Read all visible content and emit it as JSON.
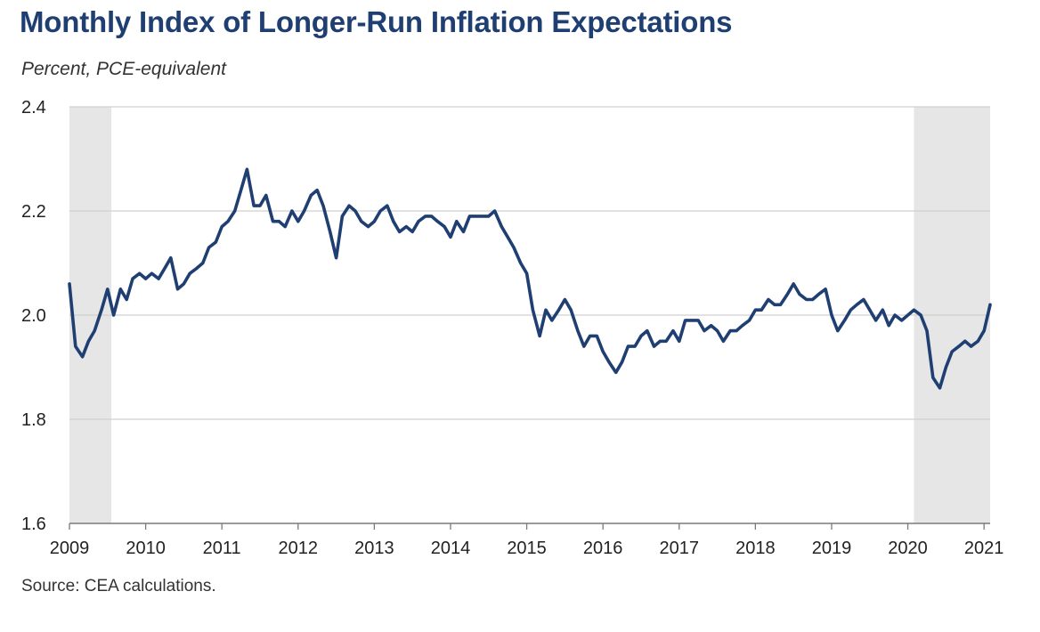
{
  "title": "Monthly Index of Longer-Run Inflation Expectations",
  "subtitle": "Percent, PCE-equivalent",
  "source": "Source: CEA calculations.",
  "chart_data": {
    "type": "line",
    "title": "Monthly Index of Longer-Run Inflation Expectations",
    "ylabel": "Percent, PCE-equivalent",
    "xlabel": "",
    "ylim": [
      1.6,
      2.4
    ],
    "xlim": [
      2009.0,
      2021.08
    ],
    "grid": true,
    "legend": "none",
    "line_color": "#1f3f73",
    "shade_color": "#e6e6e6",
    "x_ticks": [
      "2009",
      "2010",
      "2011",
      "2012",
      "2013",
      "2014",
      "2015",
      "2016",
      "2017",
      "2018",
      "2019",
      "2020",
      "2021"
    ],
    "y_ticks": [
      "1.6",
      "1.8",
      "2.0",
      "2.2",
      "2.4"
    ],
    "recession_shading": [
      [
        2009.0,
        2009.55
      ],
      [
        2020.08,
        2021.08
      ]
    ],
    "series": [
      {
        "values": [
          [
            2009.0,
            2.06
          ],
          [
            2009.08,
            1.94
          ],
          [
            2009.17,
            1.92
          ],
          [
            2009.25,
            1.95
          ],
          [
            2009.33,
            1.97
          ],
          [
            2009.42,
            2.01
          ],
          [
            2009.5,
            2.05
          ],
          [
            2009.58,
            2.0
          ],
          [
            2009.67,
            2.05
          ],
          [
            2009.75,
            2.03
          ],
          [
            2009.83,
            2.07
          ],
          [
            2009.92,
            2.08
          ],
          [
            2010.0,
            2.07
          ],
          [
            2010.08,
            2.08
          ],
          [
            2010.17,
            2.07
          ],
          [
            2010.25,
            2.09
          ],
          [
            2010.33,
            2.11
          ],
          [
            2010.42,
            2.05
          ],
          [
            2010.5,
            2.06
          ],
          [
            2010.58,
            2.08
          ],
          [
            2010.67,
            2.09
          ],
          [
            2010.75,
            2.1
          ],
          [
            2010.83,
            2.13
          ],
          [
            2010.92,
            2.14
          ],
          [
            2011.0,
            2.17
          ],
          [
            2011.08,
            2.18
          ],
          [
            2011.17,
            2.2
          ],
          [
            2011.25,
            2.24
          ],
          [
            2011.33,
            2.28
          ],
          [
            2011.42,
            2.21
          ],
          [
            2011.5,
            2.21
          ],
          [
            2011.58,
            2.23
          ],
          [
            2011.67,
            2.18
          ],
          [
            2011.75,
            2.18
          ],
          [
            2011.83,
            2.17
          ],
          [
            2011.92,
            2.2
          ],
          [
            2012.0,
            2.18
          ],
          [
            2012.08,
            2.2
          ],
          [
            2012.17,
            2.23
          ],
          [
            2012.25,
            2.24
          ],
          [
            2012.33,
            2.21
          ],
          [
            2012.42,
            2.16
          ],
          [
            2012.5,
            2.11
          ],
          [
            2012.58,
            2.19
          ],
          [
            2012.67,
            2.21
          ],
          [
            2012.75,
            2.2
          ],
          [
            2012.83,
            2.18
          ],
          [
            2012.92,
            2.17
          ],
          [
            2013.0,
            2.18
          ],
          [
            2013.08,
            2.2
          ],
          [
            2013.17,
            2.21
          ],
          [
            2013.25,
            2.18
          ],
          [
            2013.33,
            2.16
          ],
          [
            2013.42,
            2.17
          ],
          [
            2013.5,
            2.16
          ],
          [
            2013.58,
            2.18
          ],
          [
            2013.67,
            2.19
          ],
          [
            2013.75,
            2.19
          ],
          [
            2013.83,
            2.18
          ],
          [
            2013.92,
            2.17
          ],
          [
            2014.0,
            2.15
          ],
          [
            2014.08,
            2.18
          ],
          [
            2014.17,
            2.16
          ],
          [
            2014.25,
            2.19
          ],
          [
            2014.33,
            2.19
          ],
          [
            2014.42,
            2.19
          ],
          [
            2014.5,
            2.19
          ],
          [
            2014.58,
            2.2
          ],
          [
            2014.67,
            2.17
          ],
          [
            2014.75,
            2.15
          ],
          [
            2014.83,
            2.13
          ],
          [
            2014.92,
            2.1
          ],
          [
            2015.0,
            2.08
          ],
          [
            2015.08,
            2.01
          ],
          [
            2015.17,
            1.96
          ],
          [
            2015.25,
            2.01
          ],
          [
            2015.33,
            1.99
          ],
          [
            2015.42,
            2.01
          ],
          [
            2015.5,
            2.03
          ],
          [
            2015.58,
            2.01
          ],
          [
            2015.67,
            1.97
          ],
          [
            2015.75,
            1.94
          ],
          [
            2015.83,
            1.96
          ],
          [
            2015.92,
            1.96
          ],
          [
            2016.0,
            1.93
          ],
          [
            2016.08,
            1.91
          ],
          [
            2016.17,
            1.89
          ],
          [
            2016.25,
            1.91
          ],
          [
            2016.33,
            1.94
          ],
          [
            2016.42,
            1.94
          ],
          [
            2016.5,
            1.96
          ],
          [
            2016.58,
            1.97
          ],
          [
            2016.67,
            1.94
          ],
          [
            2016.75,
            1.95
          ],
          [
            2016.83,
            1.95
          ],
          [
            2016.92,
            1.97
          ],
          [
            2017.0,
            1.95
          ],
          [
            2017.08,
            1.99
          ],
          [
            2017.17,
            1.99
          ],
          [
            2017.25,
            1.99
          ],
          [
            2017.33,
            1.97
          ],
          [
            2017.42,
            1.98
          ],
          [
            2017.5,
            1.97
          ],
          [
            2017.58,
            1.95
          ],
          [
            2017.67,
            1.97
          ],
          [
            2017.75,
            1.97
          ],
          [
            2017.83,
            1.98
          ],
          [
            2017.92,
            1.99
          ],
          [
            2018.0,
            2.01
          ],
          [
            2018.08,
            2.01
          ],
          [
            2018.17,
            2.03
          ],
          [
            2018.25,
            2.02
          ],
          [
            2018.33,
            2.02
          ],
          [
            2018.42,
            2.04
          ],
          [
            2018.5,
            2.06
          ],
          [
            2018.58,
            2.04
          ],
          [
            2018.67,
            2.03
          ],
          [
            2018.75,
            2.03
          ],
          [
            2018.83,
            2.04
          ],
          [
            2018.92,
            2.05
          ],
          [
            2019.0,
            2.0
          ],
          [
            2019.08,
            1.97
          ],
          [
            2019.17,
            1.99
          ],
          [
            2019.25,
            2.01
          ],
          [
            2019.33,
            2.02
          ],
          [
            2019.42,
            2.03
          ],
          [
            2019.5,
            2.01
          ],
          [
            2019.58,
            1.99
          ],
          [
            2019.67,
            2.01
          ],
          [
            2019.75,
            1.98
          ],
          [
            2019.83,
            2.0
          ],
          [
            2019.92,
            1.99
          ],
          [
            2020.0,
            2.0
          ],
          [
            2020.08,
            2.01
          ],
          [
            2020.17,
            2.0
          ],
          [
            2020.25,
            1.97
          ],
          [
            2020.33,
            1.88
          ],
          [
            2020.42,
            1.86
          ],
          [
            2020.5,
            1.9
          ],
          [
            2020.58,
            1.93
          ],
          [
            2020.67,
            1.94
          ],
          [
            2020.75,
            1.95
          ],
          [
            2020.83,
            1.94
          ],
          [
            2020.92,
            1.95
          ],
          [
            2021.0,
            1.97
          ],
          [
            2021.08,
            2.02
          ]
        ]
      }
    ]
  }
}
